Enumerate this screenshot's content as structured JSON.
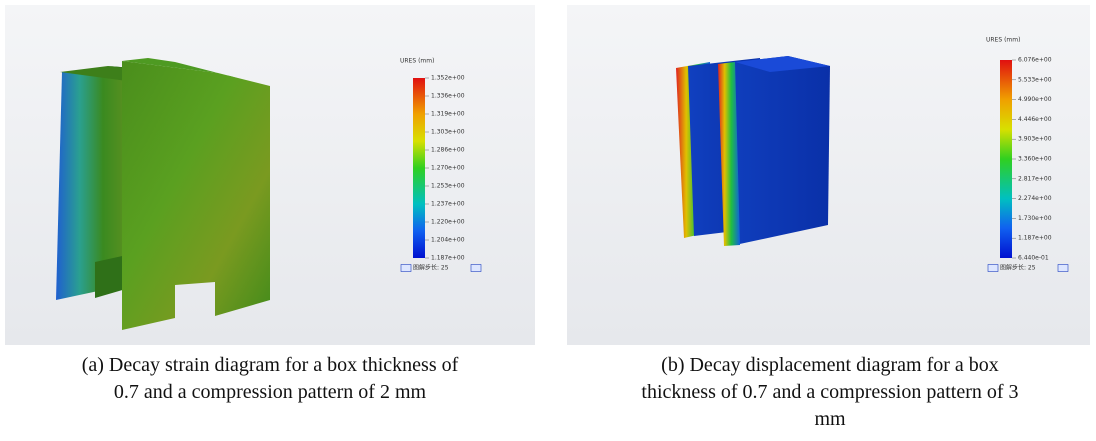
{
  "panels": [
    {
      "legend_title": "URES (mm)",
      "legend_labels": [
        "1.352e+00",
        "1.336e+00",
        "1.319e+00",
        "1.303e+00",
        "1.286e+00",
        "1.270e+00",
        "1.253e+00",
        "1.237e+00",
        "1.220e+00",
        "1.204e+00",
        "1.187e+00"
      ],
      "step_text": "图解步长: 25",
      "caption": "(a) Decay strain diagram for a box thickness of\n0.7 and a compression pattern of 2 mm"
    },
    {
      "legend_title": "URES (mm)",
      "legend_labels": [
        "6.076e+00",
        "5.533e+00",
        "4.990e+00",
        "4.446e+00",
        "3.903e+00",
        "3.360e+00",
        "2.817e+00",
        "2.274e+00",
        "1.730e+00",
        "1.187e+00",
        "6.440e-01"
      ],
      "step_text": "图解步长: 25",
      "caption": "(b) Decay displacement diagram for a box\nthickness of 0.7 and a compression pattern of 3\nmm"
    }
  ]
}
